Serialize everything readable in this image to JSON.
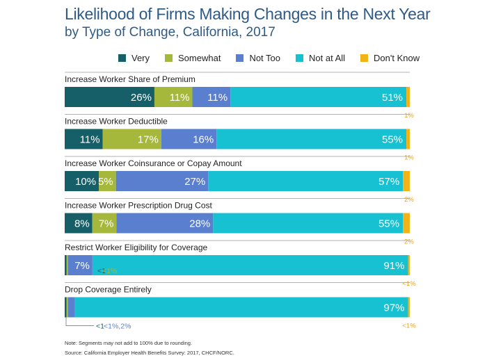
{
  "title": "Likelihood of Firms Making Changes in the Next Year",
  "subtitle": "by Type of Change, California, 2017",
  "colors": {
    "very": "#165f68",
    "somewhat": "#a6b83b",
    "not_too": "#5b7fcf",
    "not_at_all": "#18c1d1",
    "dont_know": "#f2b318",
    "title": "#2f5a86",
    "small_label": "#e8a21a"
  },
  "notes": {
    "rounding": "Note: Segments may not add to 100% due to rounding.",
    "source": "Source: California Employer Health Benefits Survey: 2017, CHCF/NORC."
  },
  "chart_data": {
    "type": "bar",
    "orientation": "horizontal",
    "stacked": true,
    "xlim": [
      0,
      100
    ],
    "series": [
      {
        "name": "Very",
        "key": "very"
      },
      {
        "name": "Somewhat",
        "key": "somewhat"
      },
      {
        "name": "Not Too",
        "key": "not_too"
      },
      {
        "name": "Not at All",
        "key": "not_at_all"
      },
      {
        "name": "Don't Know",
        "key": "dont_know"
      }
    ],
    "categories": [
      {
        "label": "Increase Worker Share of Premium",
        "values": [
          26,
          11,
          11,
          51,
          1
        ],
        "labels": [
          "26%",
          "11%",
          "11%",
          "51%",
          ""
        ],
        "below_label": "1%"
      },
      {
        "label": "Increase Worker Deductible",
        "values": [
          11,
          17,
          16,
          55,
          1
        ],
        "labels": [
          "11%",
          "17%",
          "16%",
          "55%",
          ""
        ],
        "below_label": "1%"
      },
      {
        "label": "Increase Worker Coinsurance or Copay Amount",
        "values": [
          10,
          5,
          27,
          57,
          2
        ],
        "labels": [
          "10%",
          "5%",
          "27%",
          "57%",
          ""
        ],
        "below_label": "2%"
      },
      {
        "label": "Increase Worker Prescription Drug Cost",
        "values": [
          8,
          7,
          28,
          55,
          2
        ],
        "labels": [
          "8%",
          "7%",
          "28%",
          "55%",
          ""
        ],
        "below_label": "2%"
      },
      {
        "label": "Restrict Worker Eligibility for Coverage",
        "values": [
          0.5,
          0.5,
          7,
          91,
          0.5
        ],
        "labels": [
          "",
          "",
          "7%",
          "91%",
          ""
        ],
        "small_label": "<1",
        "small_label_2": "<1%",
        "below_label": "<1%"
      },
      {
        "label": "Drop Coverage Entirely",
        "values": [
          0.5,
          0.5,
          2,
          97,
          0.5
        ],
        "labels": [
          "",
          "",
          "",
          "97%",
          ""
        ],
        "small_label": "<1",
        "small_label_2": "<1%,2%",
        "below_label": "<1%"
      }
    ]
  }
}
